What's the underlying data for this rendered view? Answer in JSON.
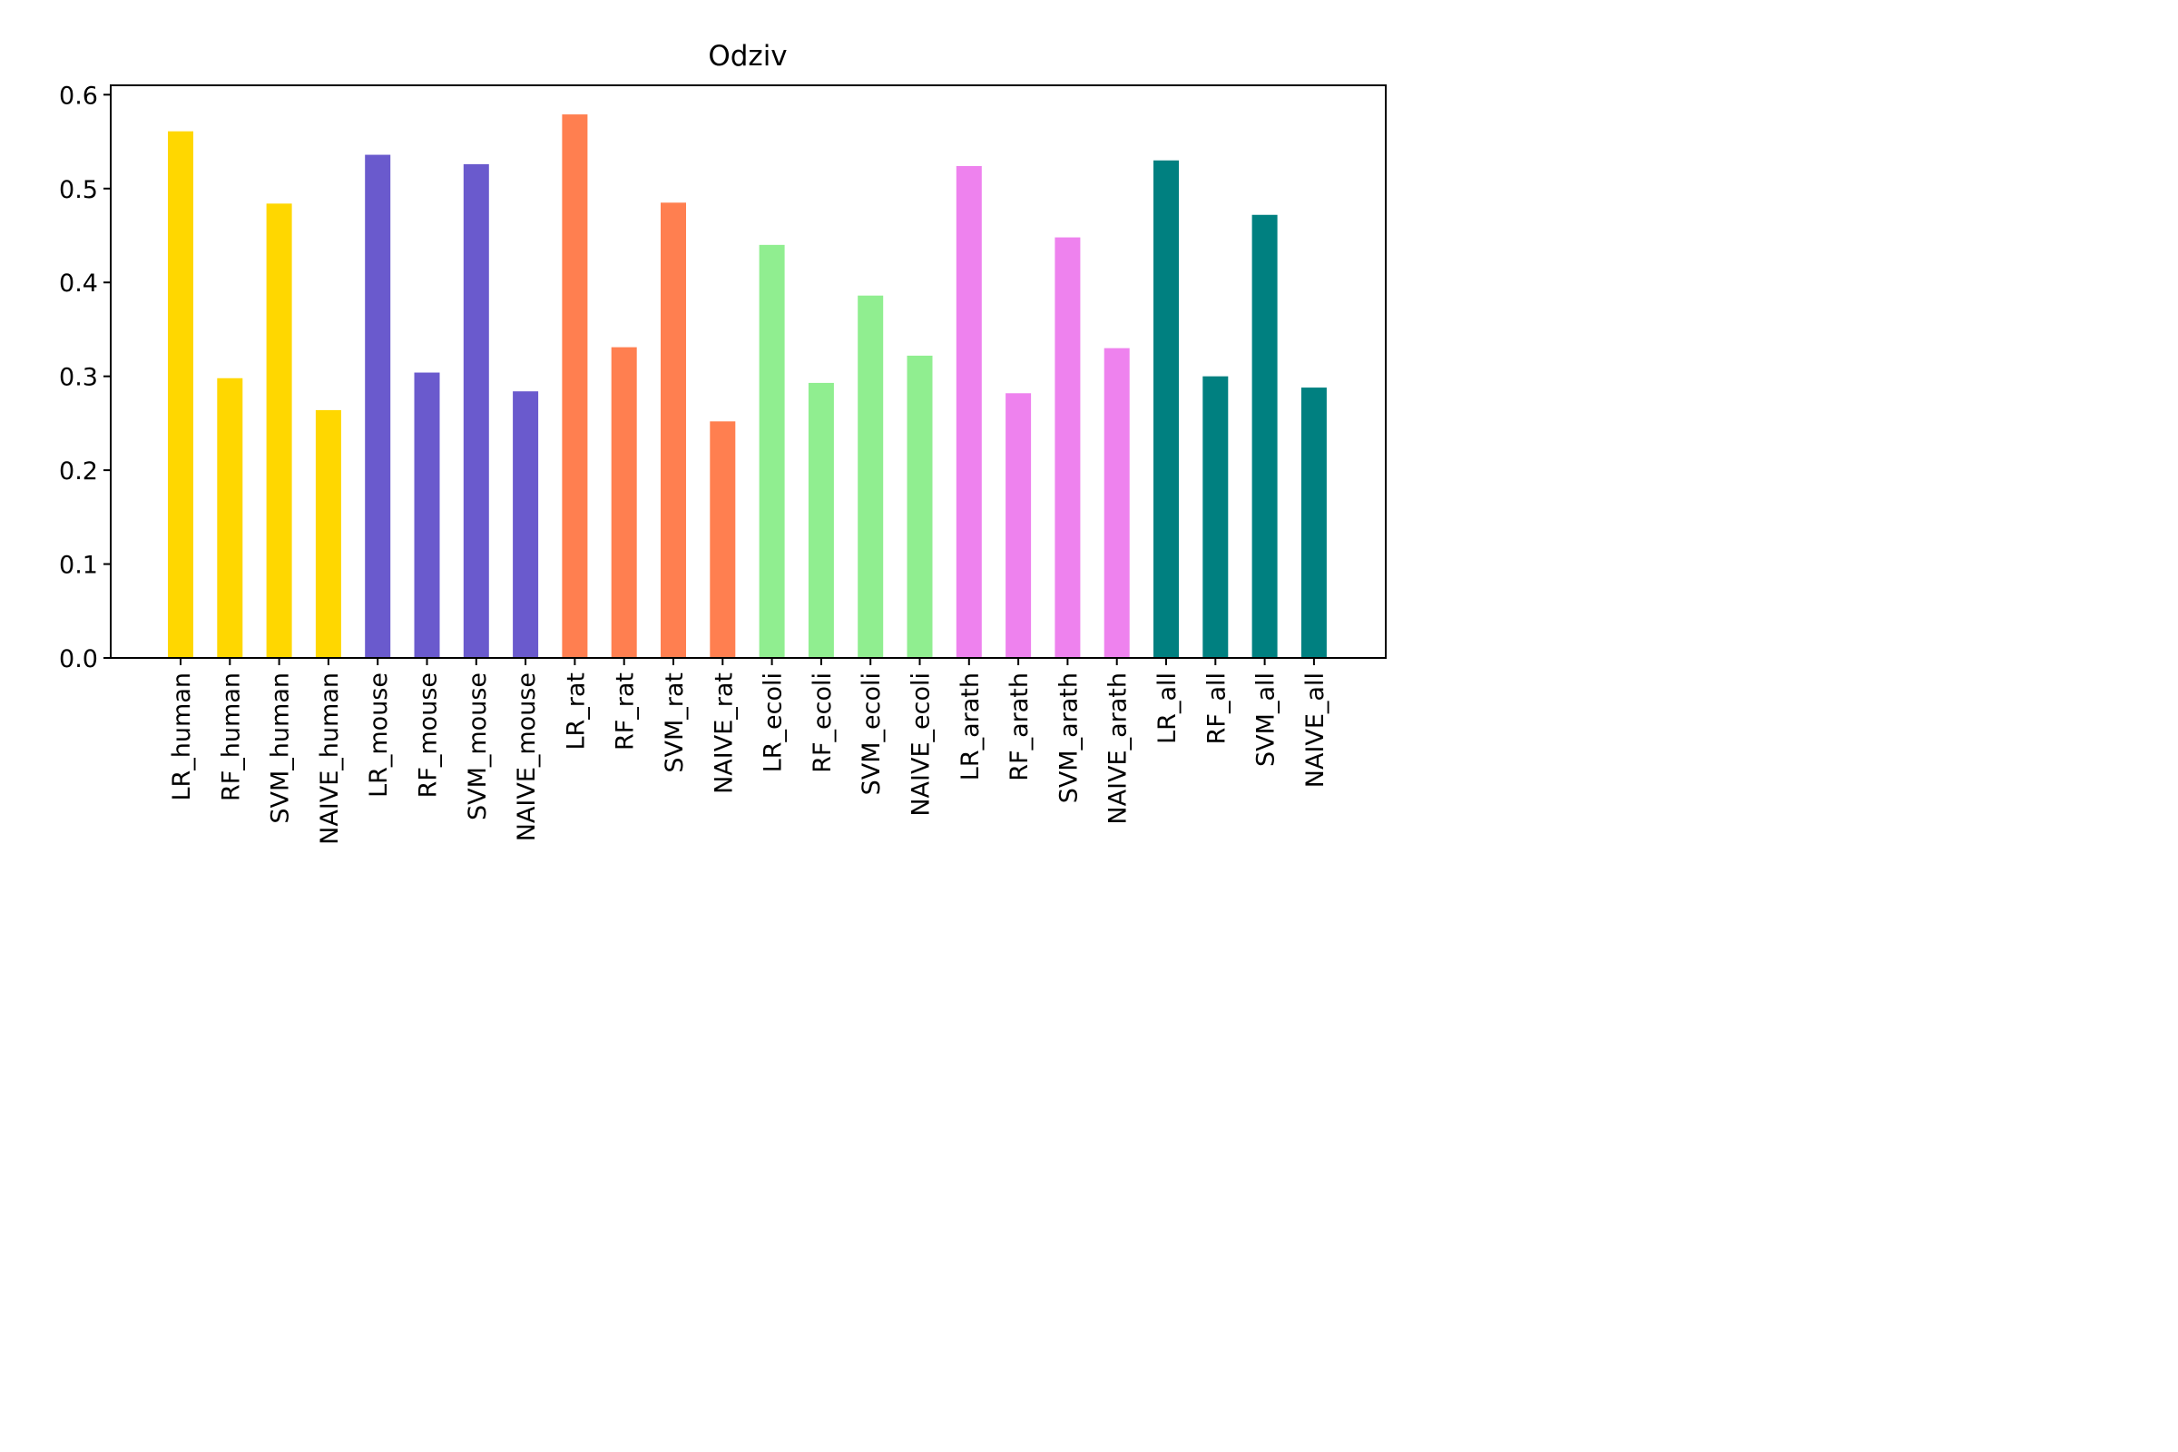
{
  "chart_data": {
    "type": "bar",
    "title": "Odziv",
    "xlabel": "",
    "ylabel": "",
    "ylim": [
      0,
      0.61
    ],
    "yticks": [
      "0.0",
      "0.1",
      "0.2",
      "0.3",
      "0.4",
      "0.5",
      "0.6"
    ],
    "grid": false,
    "legend": "none",
    "categories": [
      "LR_human",
      "RF_human",
      "SVM_human",
      "NAIVE_human",
      "LR_mouse",
      "RF_mouse",
      "SVM_mouse",
      "NAIVE_mouse",
      "LR_rat",
      "RF_rat",
      "SVM_rat",
      "NAIVE_rat",
      "LR_ecoli",
      "RF_ecoli",
      "SVM_ecoli",
      "NAIVE_ecoli",
      "LR_arath",
      "RF_arath",
      "SVM_arath",
      "NAIVE_arath",
      "LR_all",
      "RF_all",
      "SVM_all",
      "NAIVE_all"
    ],
    "values": [
      0.561,
      0.298,
      0.484,
      0.264,
      0.536,
      0.304,
      0.526,
      0.284,
      0.579,
      0.331,
      0.485,
      0.252,
      0.44,
      0.293,
      0.386,
      0.322,
      0.524,
      0.282,
      0.448,
      0.33,
      0.53,
      0.3,
      0.472,
      0.288
    ],
    "colors": [
      "#FFD700",
      "#FFD700",
      "#FFD700",
      "#FFD700",
      "#6A5ACD",
      "#6A5ACD",
      "#6A5ACD",
      "#6A5ACD",
      "#FF7F50",
      "#FF7F50",
      "#FF7F50",
      "#FF7F50",
      "#90EE90",
      "#90EE90",
      "#90EE90",
      "#90EE90",
      "#EE82EE",
      "#EE82EE",
      "#EE82EE",
      "#EE82EE",
      "#008080",
      "#008080",
      "#008080",
      "#008080"
    ]
  }
}
